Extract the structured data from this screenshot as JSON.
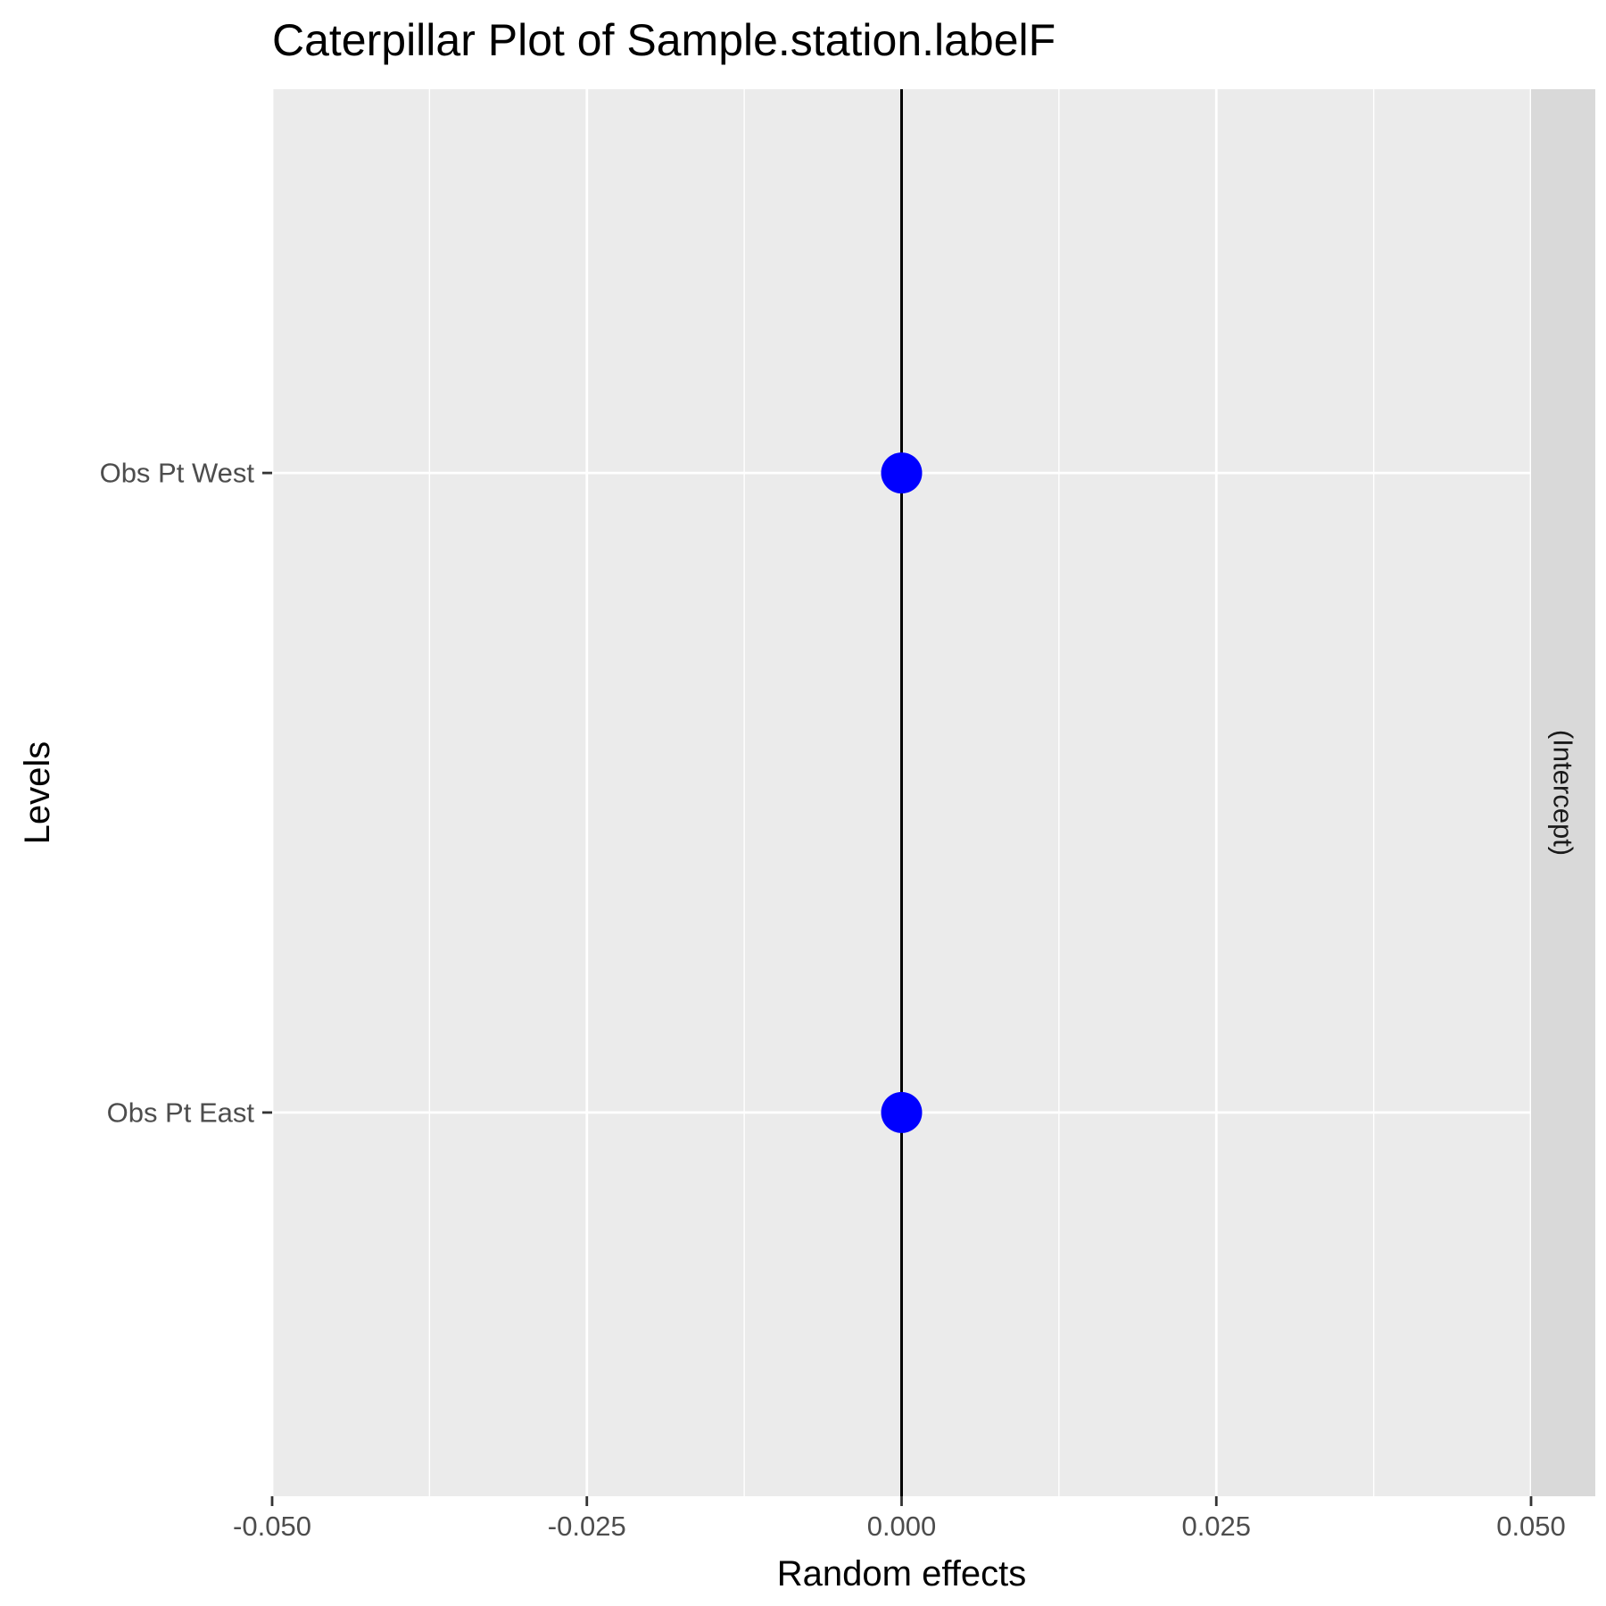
{
  "chart_data": {
    "type": "scatter",
    "title": "Caterpillar Plot of  Sample.station.labelF",
    "xlabel": "Random effects",
    "ylabel": "Levels",
    "facet_label": "(Intercept)",
    "xlim": [
      -0.05,
      0.05
    ],
    "x_ticks": [
      -0.05,
      -0.025,
      0.0,
      0.025,
      0.05
    ],
    "x_tick_labels": [
      "-0.050",
      "-0.025",
      "0.000",
      "0.025",
      "0.050"
    ],
    "categories": [
      "Obs Pt East",
      "Obs Pt West"
    ],
    "series": [
      {
        "values": [
          0.0,
          0.0
        ]
      }
    ],
    "reference_line_x": 0.0,
    "grid": true,
    "colors": {
      "point": "#0000ff",
      "panel": "#ebebeb",
      "strip": "#d9d9d9",
      "grid": "#ffffff",
      "reference_line": "#000000"
    }
  }
}
